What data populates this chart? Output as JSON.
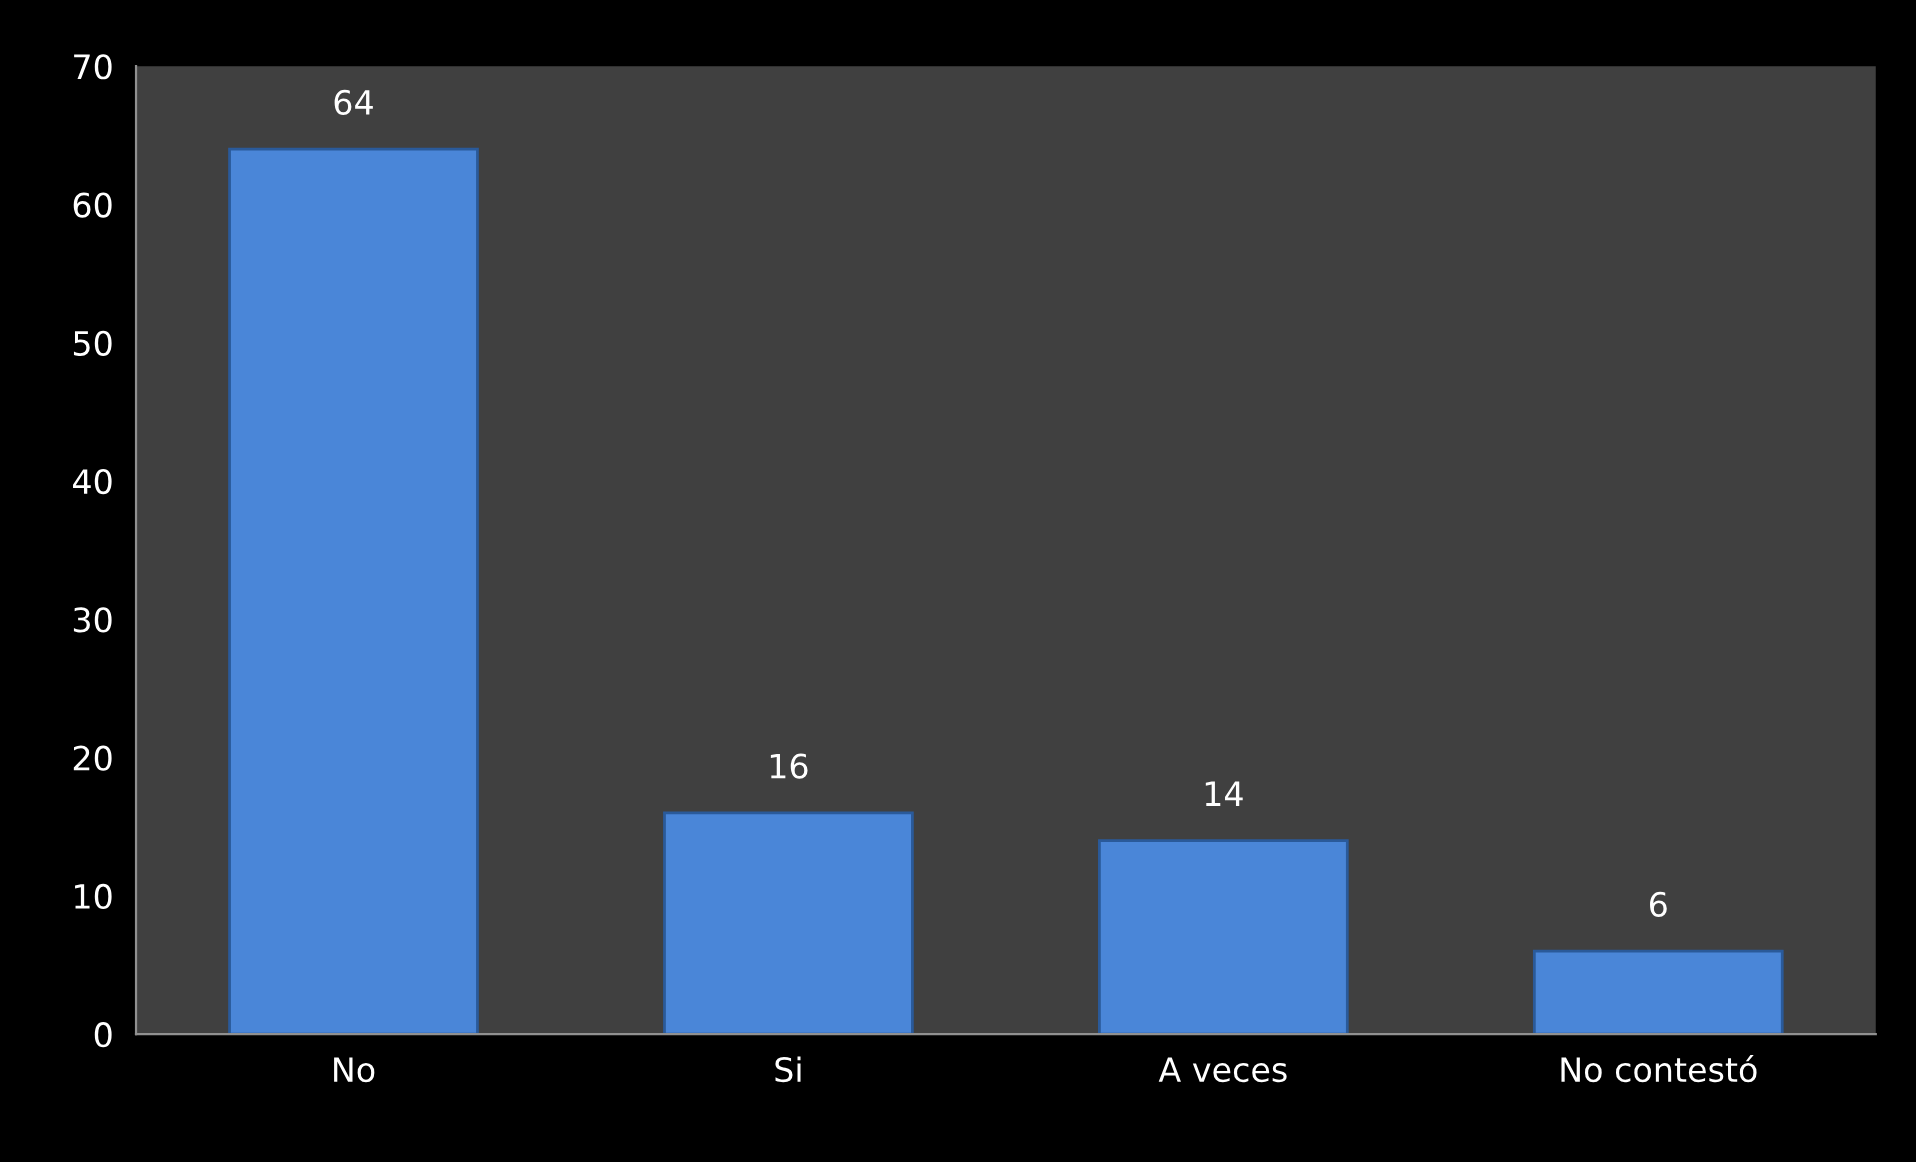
{
  "chart_data": {
    "type": "bar",
    "categories": [
      "No",
      "Si",
      "A veces",
      "No contestó"
    ],
    "values": [
      64,
      16,
      14,
      6
    ],
    "color": "#4a86d8",
    "ylim": [
      0,
      70
    ],
    "yticks": [
      0,
      10,
      20,
      30,
      40,
      50,
      60,
      70
    ],
    "data_labels": true,
    "grid": false,
    "legend": false
  }
}
